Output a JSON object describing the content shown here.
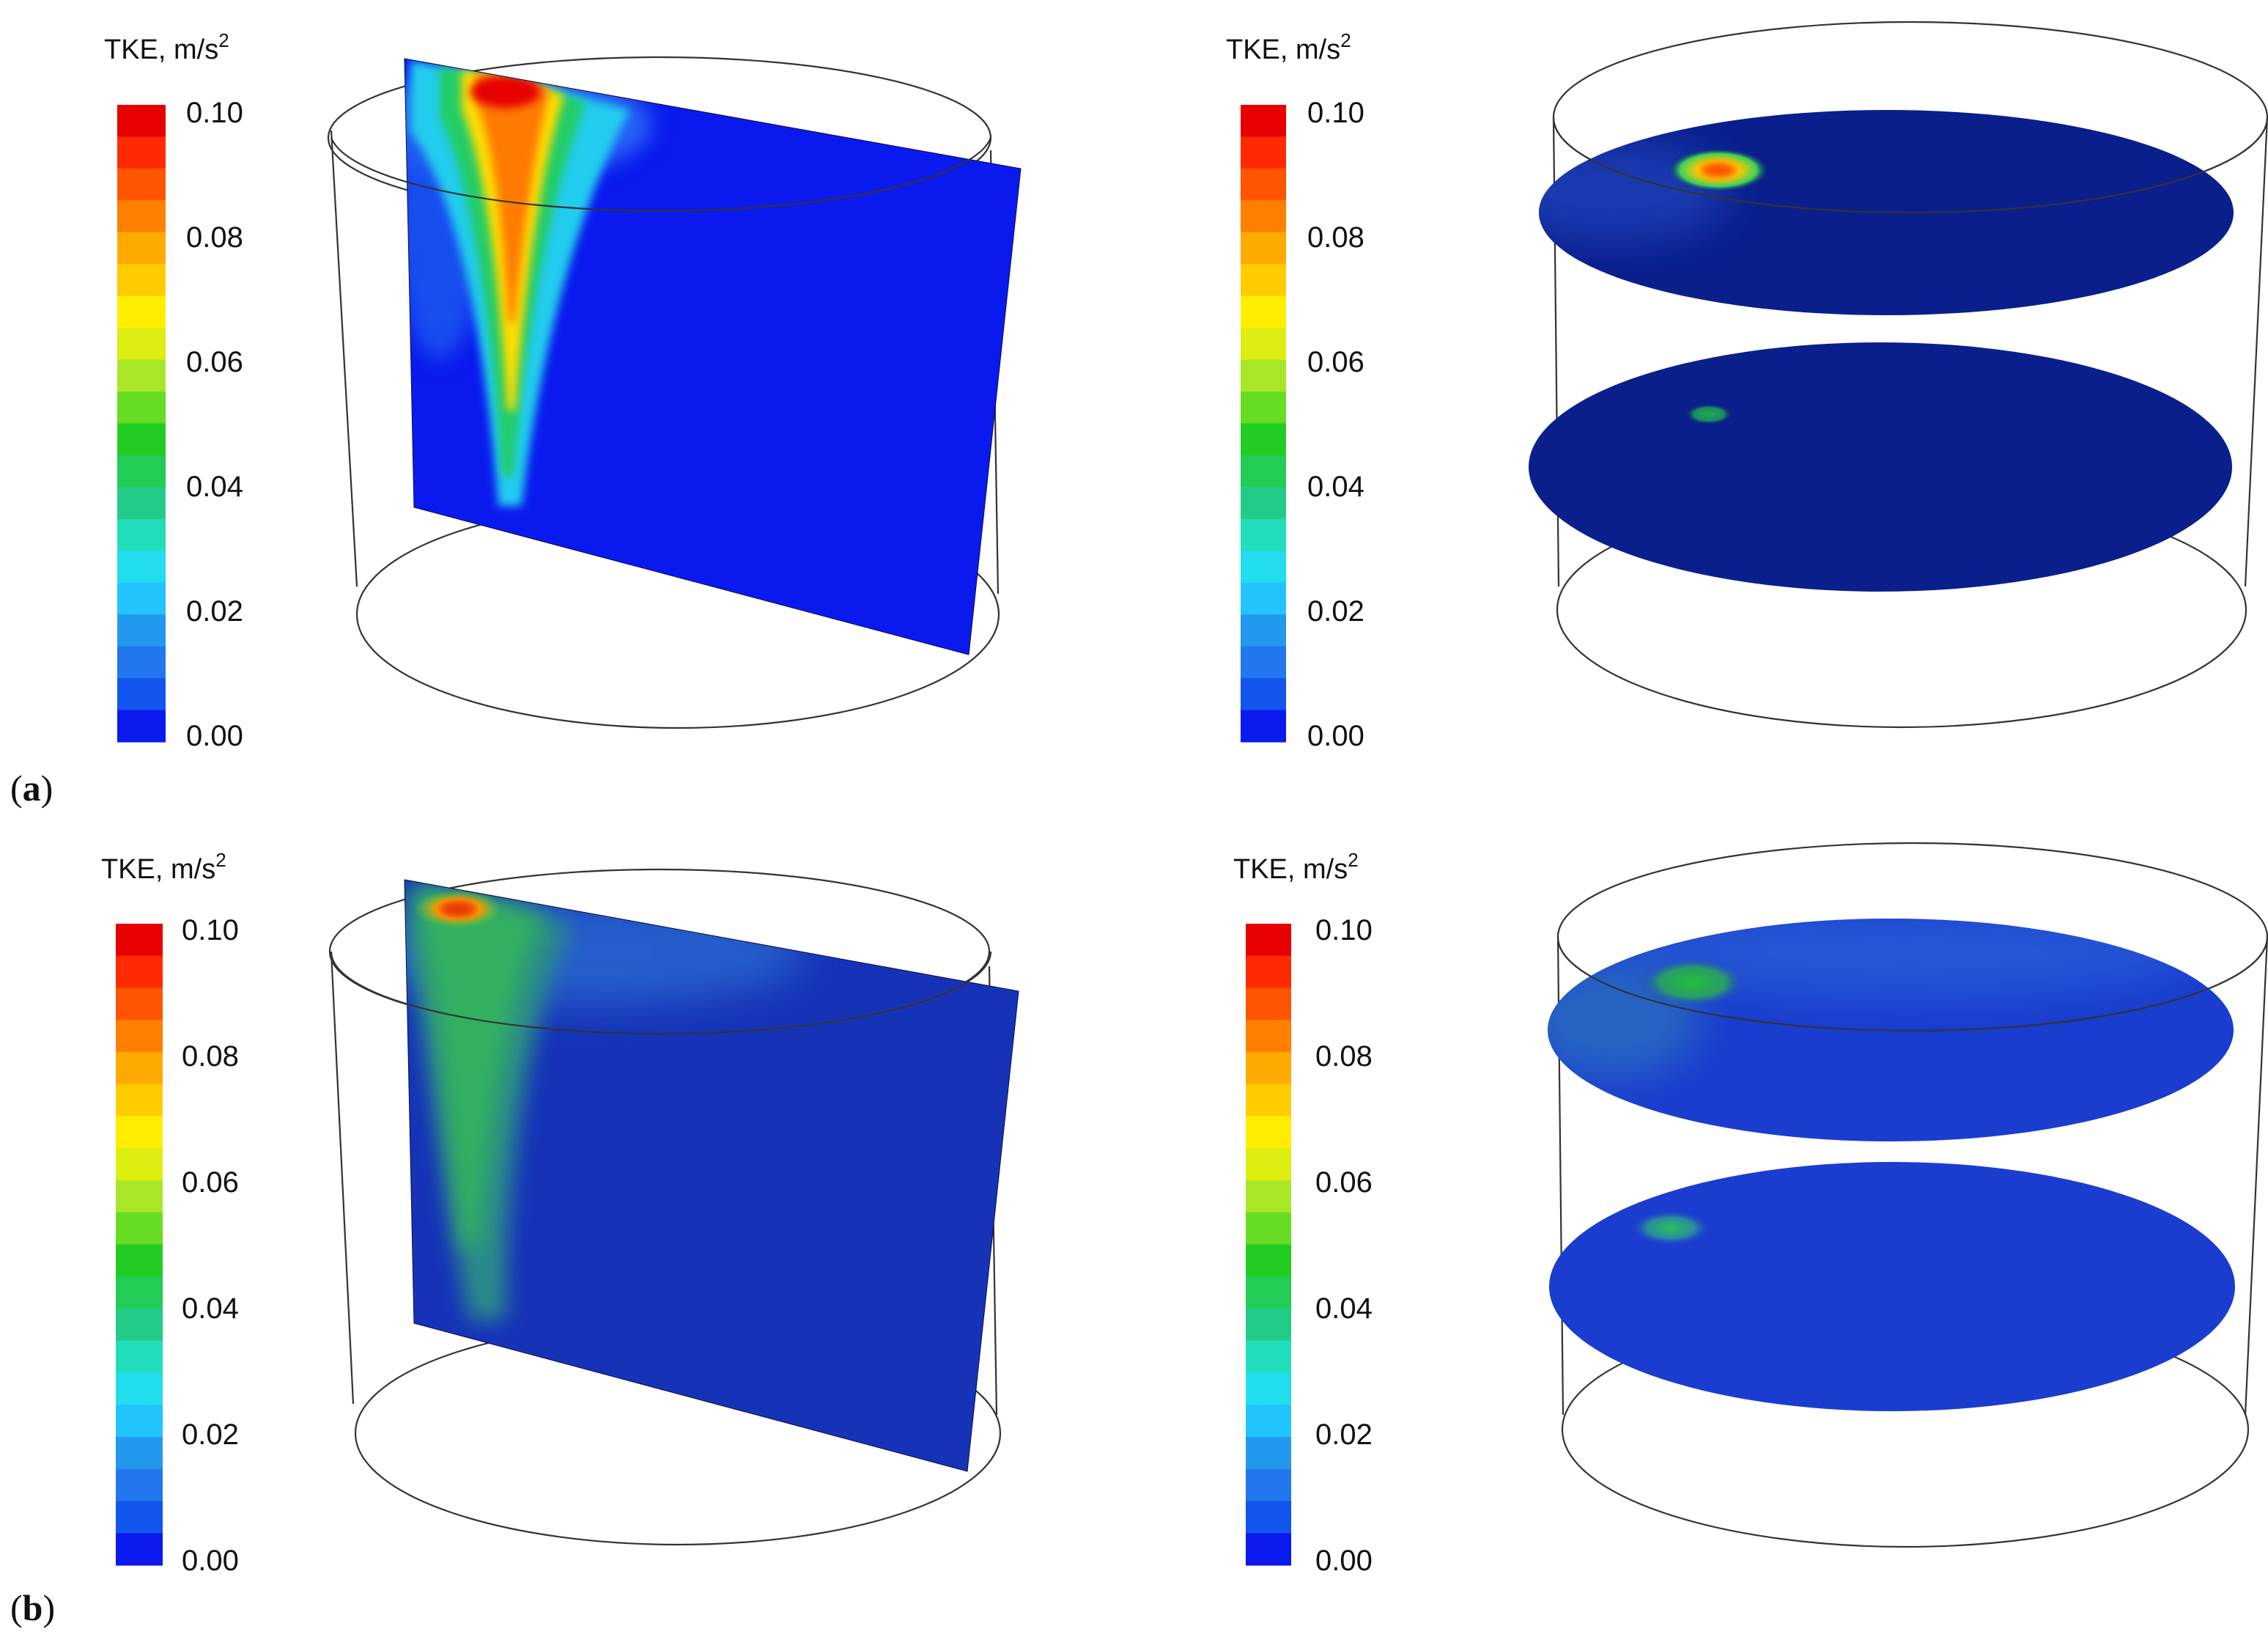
{
  "figure": {
    "colorbar": {
      "title_prefix": "TKE, m/s",
      "title_superscript": "2",
      "ticks": [
        "0.10",
        "0.08",
        "0.06",
        "0.04",
        "0.02",
        "0.00"
      ],
      "colors": [
        "#e60000",
        "#ff2a00",
        "#ff5500",
        "#ff7f00",
        "#ffaa00",
        "#ffcc00",
        "#ffee00",
        "#ddee11",
        "#aae628",
        "#66dd22",
        "#22cc22",
        "#22cc55",
        "#22cc88",
        "#22ddbb",
        "#22ddee",
        "#22c4ff",
        "#2299ee",
        "#2277ee",
        "#1155ee",
        "#0a1aee"
      ]
    },
    "rows": [
      {
        "panel_label": "a",
        "style": "contour-banded"
      },
      {
        "panel_label": "b",
        "style": "smooth"
      }
    ]
  }
}
